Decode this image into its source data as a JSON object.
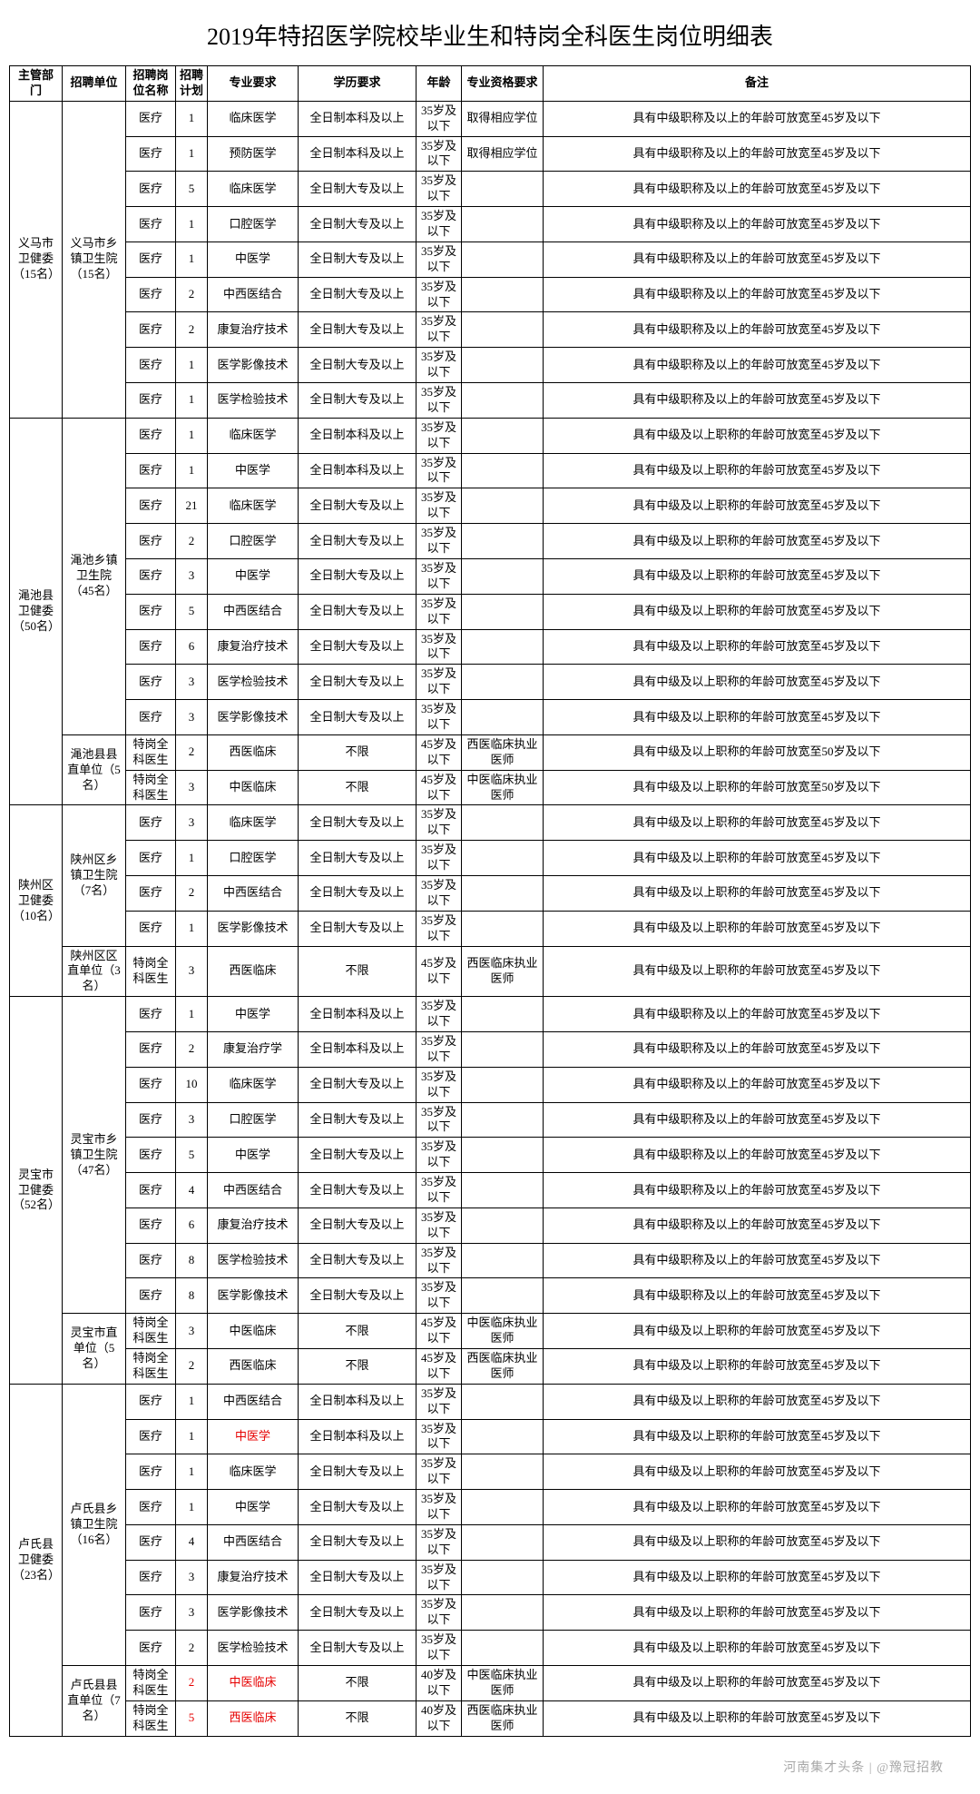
{
  "title": "2019年特招医学院校毕业生和特岗全科医生岗位明细表",
  "columns": [
    "主管部门",
    "招聘单位",
    "招聘岗位名称",
    "招聘计划",
    "专业要求",
    "学历要求",
    "年龄",
    "专业资格要求",
    "备注"
  ],
  "age35": "35岁及以下",
  "age40": "40岁及以下",
  "age45": "45岁及以下",
  "edu_bk": "全日制本科及以上",
  "edu_dz": "全日制大专及以上",
  "edu_bx": "不限",
  "note_a": "具有中级职称及以上的年龄可放宽至45岁及以下",
  "note_b": "具有中级及以上职称的年龄可放宽至45岁及以下",
  "note_c": "具有中级及以上职称的年龄可放宽至50岁及以下",
  "qual_xw": "取得相应学位",
  "qual_xy": "西医临床执业医师",
  "qual_zy": "中医临床执业医师",
  "groups": [
    {
      "dept": "义马市卫健委（15名）",
      "units": [
        {
          "unit": "义马市乡镇卫生院（15名）",
          "rows": [
            {
              "post": "医疗",
              "plan": "1",
              "major": "临床医学",
              "edu": "bk",
              "age": "35",
              "qual": "xw",
              "note": "a"
            },
            {
              "post": "医疗",
              "plan": "1",
              "major": "预防医学",
              "edu": "bk",
              "age": "35",
              "qual": "xw",
              "note": "a"
            },
            {
              "post": "医疗",
              "plan": "5",
              "major": "临床医学",
              "edu": "dz",
              "age": "35",
              "qual": "",
              "note": "a"
            },
            {
              "post": "医疗",
              "plan": "1",
              "major": "口腔医学",
              "edu": "dz",
              "age": "35",
              "qual": "",
              "note": "a"
            },
            {
              "post": "医疗",
              "plan": "1",
              "major": "中医学",
              "edu": "dz",
              "age": "35",
              "qual": "",
              "note": "a"
            },
            {
              "post": "医疗",
              "plan": "2",
              "major": "中西医结合",
              "edu": "dz",
              "age": "35",
              "qual": "",
              "note": "a"
            },
            {
              "post": "医疗",
              "plan": "2",
              "major": "康复治疗技术",
              "edu": "dz",
              "age": "35",
              "qual": "",
              "note": "a"
            },
            {
              "post": "医疗",
              "plan": "1",
              "major": "医学影像技术",
              "edu": "dz",
              "age": "35",
              "qual": "",
              "note": "a"
            },
            {
              "post": "医疗",
              "plan": "1",
              "major": "医学检验技术",
              "edu": "dz",
              "age": "35",
              "qual": "",
              "note": "a"
            }
          ]
        }
      ]
    },
    {
      "dept": "渑池县卫健委（50名）",
      "units": [
        {
          "unit": "渑池乡镇卫生院（45名）",
          "rows": [
            {
              "post": "医疗",
              "plan": "1",
              "major": "临床医学",
              "edu": "bk",
              "age": "35",
              "qual": "",
              "note": "b"
            },
            {
              "post": "医疗",
              "plan": "1",
              "major": "中医学",
              "edu": "bk",
              "age": "35",
              "qual": "",
              "note": "b"
            },
            {
              "post": "医疗",
              "plan": "21",
              "major": "临床医学",
              "edu": "dz",
              "age": "35",
              "qual": "",
              "note": "b"
            },
            {
              "post": "医疗",
              "plan": "2",
              "major": "口腔医学",
              "edu": "dz",
              "age": "35",
              "qual": "",
              "note": "b"
            },
            {
              "post": "医疗",
              "plan": "3",
              "major": "中医学",
              "edu": "dz",
              "age": "35",
              "qual": "",
              "note": "b"
            },
            {
              "post": "医疗",
              "plan": "5",
              "major": "中西医结合",
              "edu": "dz",
              "age": "35",
              "qual": "",
              "note": "b"
            },
            {
              "post": "医疗",
              "plan": "6",
              "major": "康复治疗技术",
              "edu": "dz",
              "age": "35",
              "qual": "",
              "note": "b"
            },
            {
              "post": "医疗",
              "plan": "3",
              "major": "医学检验技术",
              "edu": "dz",
              "age": "35",
              "qual": "",
              "note": "b"
            },
            {
              "post": "医疗",
              "plan": "3",
              "major": "医学影像技术",
              "edu": "dz",
              "age": "35",
              "qual": "",
              "note": "b"
            }
          ]
        },
        {
          "unit": "渑池县县直单位（5名）",
          "rows": [
            {
              "post": "特岗全科医生",
              "plan": "2",
              "major": "西医临床",
              "edu": "bx",
              "age": "45",
              "qual": "xy",
              "note": "c"
            },
            {
              "post": "特岗全科医生",
              "plan": "3",
              "major": "中医临床",
              "edu": "bx",
              "age": "45",
              "qual": "zy",
              "note": "c"
            }
          ]
        }
      ]
    },
    {
      "dept": "陕州区卫健委（10名）",
      "units": [
        {
          "unit": "陕州区乡镇卫生院（7名）",
          "rows": [
            {
              "post": "医疗",
              "plan": "3",
              "major": "临床医学",
              "edu": "dz",
              "age": "35",
              "qual": "",
              "note": "b"
            },
            {
              "post": "医疗",
              "plan": "1",
              "major": "口腔医学",
              "edu": "dz",
              "age": "35",
              "qual": "",
              "note": "b"
            },
            {
              "post": "医疗",
              "plan": "2",
              "major": "中西医结合",
              "edu": "dz",
              "age": "35",
              "qual": "",
              "note": "b"
            },
            {
              "post": "医疗",
              "plan": "1",
              "major": "医学影像技术",
              "edu": "dz",
              "age": "35",
              "qual": "",
              "note": "b"
            }
          ]
        },
        {
          "unit": "陕州区区直单位（3名）",
          "rows": [
            {
              "post": "特岗全科医生",
              "plan": "3",
              "major": "西医临床",
              "edu": "bx",
              "age": "45",
              "qual": "xy",
              "note": "b"
            }
          ]
        }
      ]
    },
    {
      "dept": "灵宝市卫健委（52名）",
      "units": [
        {
          "unit": "灵宝市乡镇卫生院（47名）",
          "rows": [
            {
              "post": "医疗",
              "plan": "1",
              "major": "中医学",
              "edu": "bk",
              "age": "35",
              "qual": "",
              "note": "a"
            },
            {
              "post": "医疗",
              "plan": "2",
              "major": "康复治疗学",
              "edu": "bk",
              "age": "35",
              "qual": "",
              "note": "a"
            },
            {
              "post": "医疗",
              "plan": "10",
              "major": "临床医学",
              "edu": "dz",
              "age": "35",
              "qual": "",
              "note": "a"
            },
            {
              "post": "医疗",
              "plan": "3",
              "major": "口腔医学",
              "edu": "dz",
              "age": "35",
              "qual": "",
              "note": "a"
            },
            {
              "post": "医疗",
              "plan": "5",
              "major": "中医学",
              "edu": "dz",
              "age": "35",
              "qual": "",
              "note": "a"
            },
            {
              "post": "医疗",
              "plan": "4",
              "major": "中西医结合",
              "edu": "dz",
              "age": "35",
              "qual": "",
              "note": "a"
            },
            {
              "post": "医疗",
              "plan": "6",
              "major": "康复治疗技术",
              "edu": "dz",
              "age": "35",
              "qual": "",
              "note": "a"
            },
            {
              "post": "医疗",
              "plan": "8",
              "major": "医学检验技术",
              "edu": "dz",
              "age": "35",
              "qual": "",
              "note": "a"
            },
            {
              "post": "医疗",
              "plan": "8",
              "major": "医学影像技术",
              "edu": "dz",
              "age": "35",
              "qual": "",
              "note": "a"
            }
          ]
        },
        {
          "unit": "灵宝市直单位（5名）",
          "rows": [
            {
              "post": "特岗全科医生",
              "plan": "3",
              "major": "中医临床",
              "edu": "bx",
              "age": "45",
              "qual": "zy",
              "note": "b"
            },
            {
              "post": "特岗全科医生",
              "plan": "2",
              "major": "西医临床",
              "edu": "bx",
              "age": "45",
              "qual": "xy",
              "note": "b"
            }
          ]
        }
      ]
    },
    {
      "dept": "卢氏县卫健委（23名）",
      "units": [
        {
          "unit": "卢氏县乡镇卫生院（16名）",
          "rows": [
            {
              "post": "医疗",
              "plan": "1",
              "major": "中西医结合",
              "edu": "bk",
              "age": "35",
              "qual": "",
              "note": "b"
            },
            {
              "post": "医疗",
              "plan": "1",
              "major": "中医学",
              "major_red": true,
              "edu": "bk",
              "age": "35",
              "qual": "",
              "note": "b"
            },
            {
              "post": "医疗",
              "plan": "1",
              "major": "临床医学",
              "edu": "dz",
              "age": "35",
              "qual": "",
              "note": "b"
            },
            {
              "post": "医疗",
              "plan": "1",
              "major": "中医学",
              "edu": "dz",
              "age": "35",
              "qual": "",
              "note": "b"
            },
            {
              "post": "医疗",
              "plan": "4",
              "major": "中西医结合",
              "edu": "dz",
              "age": "35",
              "qual": "",
              "note": "b"
            },
            {
              "post": "医疗",
              "plan": "3",
              "major": "康复治疗技术",
              "edu": "dz",
              "age": "35",
              "qual": "",
              "note": "b"
            },
            {
              "post": "医疗",
              "plan": "3",
              "major": "医学影像技术",
              "edu": "dz",
              "age": "35",
              "qual": "",
              "note": "b"
            },
            {
              "post": "医疗",
              "plan": "2",
              "major": "医学检验技术",
              "edu": "dz",
              "age": "35",
              "qual": "",
              "note": "b"
            }
          ]
        },
        {
          "unit": "卢氏县县直单位（7名）",
          "rows": [
            {
              "post": "特岗全科医生",
              "plan": "2",
              "plan_red": true,
              "major": "中医临床",
              "major_red": true,
              "edu": "bx",
              "age": "40",
              "qual": "zy",
              "note": "b"
            },
            {
              "post": "特岗全科医生",
              "plan": "5",
              "plan_red": true,
              "major": "西医临床",
              "major_red": true,
              "edu": "bx",
              "age": "40",
              "qual": "xy",
              "note": "b"
            }
          ]
        }
      ]
    }
  ],
  "watermark": "河南集才头条 | @豫冠招教"
}
